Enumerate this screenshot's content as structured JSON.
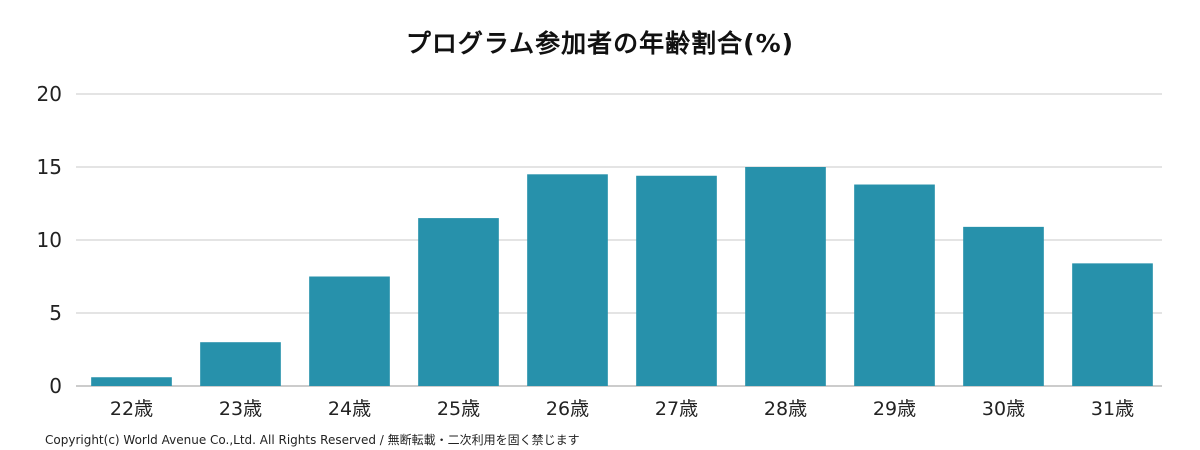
{
  "chart_data": {
    "type": "bar",
    "title": "プログラム参加者の年齢割合(%)",
    "categories": [
      "22歳",
      "23歳",
      "24歳",
      "25歳",
      "26歳",
      "27歳",
      "28歳",
      "29歳",
      "30歳",
      "31歳"
    ],
    "values": [
      0.6,
      3.0,
      7.5,
      11.5,
      14.5,
      14.4,
      15.0,
      13.8,
      10.9,
      8.4
    ],
    "ylim": [
      0,
      20
    ],
    "yticks": [
      0,
      5,
      10,
      15,
      20
    ],
    "grid": true,
    "bar_color": "#2791ab",
    "grid_color": "#c8c8c8"
  },
  "footer": {
    "copyright": "Copyright(c) World Avenue Co.,Ltd. All Rights Reserved / 無断転載・二次利用を固く禁じます"
  }
}
